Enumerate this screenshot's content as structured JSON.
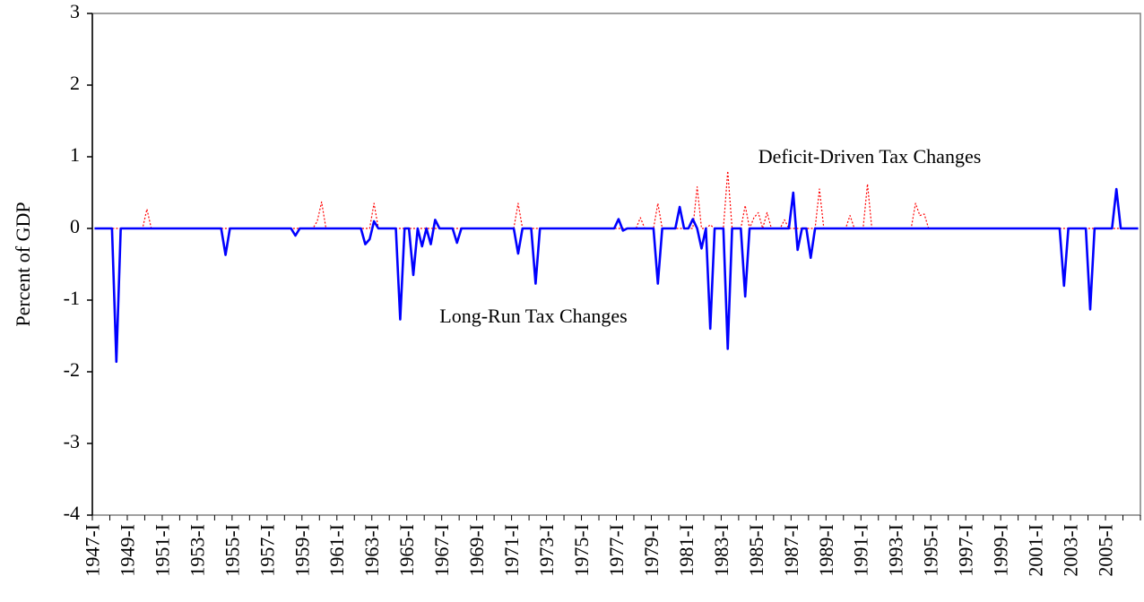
{
  "chart_data": {
    "type": "line",
    "ylabel": "Percent of GDP",
    "ylim": [
      -4,
      3
    ],
    "yticks": [
      -4,
      -3,
      -2,
      -1,
      0,
      1,
      2,
      3
    ],
    "categories": [
      "1947-I",
      null,
      null,
      null,
      null,
      null,
      null,
      null,
      "1949-I",
      null,
      null,
      null,
      null,
      null,
      null,
      null,
      "1951-I",
      null,
      null,
      null,
      null,
      null,
      null,
      null,
      "1953-I",
      null,
      null,
      null,
      null,
      null,
      null,
      null,
      "1955-I",
      null,
      null,
      null,
      null,
      null,
      null,
      null,
      "1957-I",
      null,
      null,
      null,
      null,
      null,
      null,
      null,
      "1959-I",
      null,
      null,
      null,
      null,
      null,
      null,
      null,
      "1961-I",
      null,
      null,
      null,
      null,
      null,
      null,
      null,
      "1963-I",
      null,
      null,
      null,
      null,
      null,
      null,
      null,
      "1965-I",
      null,
      null,
      null,
      null,
      null,
      null,
      null,
      "1967-I",
      null,
      null,
      null,
      null,
      null,
      null,
      null,
      "1969-I",
      null,
      null,
      null,
      null,
      null,
      null,
      null,
      "1971-I",
      null,
      null,
      null,
      null,
      null,
      null,
      null,
      "1973-I",
      null,
      null,
      null,
      null,
      null,
      null,
      null,
      "1975-I",
      null,
      null,
      null,
      null,
      null,
      null,
      null,
      "1977-I",
      null,
      null,
      null,
      null,
      null,
      null,
      null,
      "1979-I",
      null,
      null,
      null,
      null,
      null,
      null,
      null,
      "1981-I",
      null,
      null,
      null,
      null,
      null,
      null,
      null,
      "1983-I",
      null,
      null,
      null,
      null,
      null,
      null,
      null,
      "1985-I",
      null,
      null,
      null,
      null,
      null,
      null,
      null,
      "1987-I",
      null,
      null,
      null,
      null,
      null,
      null,
      null,
      "1989-I",
      null,
      null,
      null,
      null,
      null,
      null,
      null,
      "1991-I",
      null,
      null,
      null,
      null,
      null,
      null,
      null,
      "1993-I",
      null,
      null,
      null,
      null,
      null,
      null,
      null,
      "1995-I",
      null,
      null,
      null,
      null,
      null,
      null,
      null,
      "1997-I",
      null,
      null,
      null,
      null,
      null,
      null,
      null,
      "1999-I",
      null,
      null,
      null,
      null,
      null,
      null,
      null,
      "2001-I",
      null,
      null,
      null,
      null,
      null,
      null,
      null,
      "2003-I",
      null,
      null,
      null,
      null,
      null,
      null,
      null,
      "2005-I",
      null,
      null,
      null,
      null,
      null,
      null,
      null
    ],
    "series": [
      {
        "name": "Deficit-Driven Tax Changes",
        "color": "#ff0000",
        "style": "dotted",
        "values": [
          0,
          0,
          0,
          0,
          0,
          0,
          0,
          0,
          0,
          0,
          0,
          0,
          0.27,
          0,
          0,
          0,
          0,
          0,
          0,
          0,
          0,
          0,
          0,
          0,
          0,
          0,
          0,
          0,
          0,
          0,
          0,
          0,
          0,
          0,
          0,
          0,
          0,
          0,
          0,
          0,
          0,
          0,
          0,
          0,
          0,
          0,
          0,
          0,
          0,
          0,
          0,
          0.1,
          0.37,
          0,
          0,
          0,
          0,
          0,
          0,
          0,
          0,
          0,
          0,
          0,
          0.35,
          0,
          0,
          0,
          0,
          0,
          0,
          0,
          0,
          0,
          0,
          0,
          0,
          0,
          0,
          0,
          0,
          0,
          0,
          0,
          0,
          0,
          0,
          0,
          0,
          0,
          0,
          0,
          0,
          0,
          0,
          0,
          0,
          0.35,
          0,
          0,
          0,
          0,
          0,
          0,
          0,
          0,
          0,
          0,
          0,
          0,
          0,
          0,
          0,
          0,
          0,
          0,
          0,
          0,
          0,
          0,
          0,
          0,
          0,
          0,
          0,
          0.15,
          0,
          0,
          0,
          0.35,
          0,
          0,
          0,
          0,
          0,
          0,
          0,
          0,
          0.58,
          0,
          0,
          0.05,
          0,
          0,
          0,
          0.8,
          0,
          0,
          0,
          0.32,
          0,
          0.15,
          0.22,
          0,
          0.22,
          0,
          0,
          0,
          0.12,
          0,
          0,
          0,
          0,
          0,
          0,
          0,
          0.55,
          0,
          0,
          0,
          0,
          0,
          0,
          0.18,
          0,
          0,
          0,
          0.62,
          0,
          0,
          0,
          0,
          0,
          0,
          0,
          0,
          0,
          0,
          0.35,
          0.18,
          0.2,
          0,
          0,
          0,
          0,
          0,
          0,
          0,
          0,
          0,
          0,
          0,
          0,
          0,
          0,
          0,
          0,
          0,
          0,
          0,
          0,
          0,
          0,
          0,
          0,
          0,
          0,
          0,
          0,
          0,
          0,
          0,
          0,
          0,
          0,
          0,
          0,
          0,
          0,
          0,
          0,
          0,
          0,
          0,
          0,
          0,
          0,
          0,
          0,
          0
        ]
      },
      {
        "name": "Long-Run Tax Changes",
        "color": "#0000ff",
        "style": "solid",
        "values": [
          0,
          0,
          0,
          0,
          0,
          -1.86,
          0,
          0,
          0,
          0,
          0,
          0,
          0,
          0,
          0,
          0,
          0,
          0,
          0,
          0,
          0,
          0,
          0,
          0,
          0,
          0,
          0,
          0,
          0,
          0,
          -0.37,
          0,
          0,
          0,
          0,
          0,
          0,
          0,
          0,
          0,
          0,
          0,
          0,
          0,
          0,
          0,
          -0.1,
          0,
          0,
          0,
          0,
          0,
          0,
          0,
          0,
          0,
          0,
          0,
          0,
          0,
          0,
          0,
          -0.22,
          -0.15,
          0.1,
          0,
          0,
          0,
          0,
          0,
          -1.27,
          0,
          0,
          -0.65,
          0,
          -0.25,
          0,
          -0.22,
          0.12,
          0,
          0,
          0,
          0,
          -0.2,
          0,
          0,
          0,
          0,
          0,
          0,
          0,
          0,
          0,
          0,
          0,
          0,
          0,
          -0.35,
          0,
          0,
          0,
          -0.77,
          0,
          0,
          0,
          0,
          0,
          0,
          0,
          0,
          0,
          0,
          0,
          0,
          0,
          0,
          0,
          0,
          0,
          0,
          0.13,
          -0.03,
          0,
          0,
          0,
          0,
          0,
          0,
          0,
          -0.77,
          0,
          0,
          0,
          0,
          0.3,
          0,
          0,
          0.13,
          0,
          -0.28,
          0,
          -1.4,
          0,
          0,
          0,
          -1.68,
          0,
          0,
          0,
          -0.95,
          0,
          0,
          0,
          0,
          0,
          0,
          0,
          0,
          0,
          0,
          0.5,
          -0.3,
          0,
          0,
          -0.41,
          0,
          0,
          0,
          0,
          0,
          0,
          0,
          0,
          0,
          0,
          0,
          0,
          0,
          0,
          0,
          0,
          0,
          0,
          0,
          0,
          0,
          0,
          0,
          0,
          0,
          0,
          0,
          0,
          0,
          0,
          0,
          0,
          0,
          0,
          0,
          0,
          0,
          0,
          0,
          0,
          0,
          0,
          0,
          0,
          0,
          0,
          0,
          0,
          0,
          0,
          0,
          0,
          0,
          0,
          0,
          0,
          0,
          -0.8,
          0,
          0,
          0,
          0,
          0,
          -1.13,
          0,
          0,
          0,
          0,
          0,
          0.55,
          0,
          0,
          0,
          0,
          0
        ]
      }
    ]
  }
}
